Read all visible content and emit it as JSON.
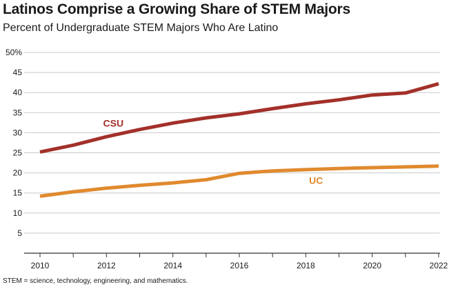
{
  "header": {
    "title": "Latinos Comprise a Growing Share of STEM Majors",
    "subtitle": "Percent of Undergraduate STEM Majors Who Are Latino"
  },
  "footnote": "STEM = science, technology, engineering, and mathematics.",
  "chart_data": {
    "type": "line",
    "title": "Latinos Comprise a Growing Share of STEM Majors",
    "subtitle": "Percent of Undergraduate STEM Majors Who Are Latino",
    "x": [
      2010,
      2011,
      2012,
      2013,
      2014,
      2015,
      2016,
      2017,
      2018,
      2019,
      2020,
      2021,
      2022
    ],
    "xlim": [
      2010,
      2022
    ],
    "x_tick_labels": [
      "2010",
      "2012",
      "2014",
      "2016",
      "2018",
      "2020",
      "2022"
    ],
    "x_tick_values": [
      2010,
      2012,
      2014,
      2016,
      2018,
      2020,
      2022
    ],
    "ylim": [
      0,
      50
    ],
    "y_tick_values": [
      5,
      10,
      15,
      20,
      25,
      30,
      35,
      40,
      45,
      50
    ],
    "y_tick_labels": [
      "5",
      "10",
      "15",
      "20",
      "25",
      "30",
      "35",
      "40",
      "45",
      "50%"
    ],
    "grid": "horizontal",
    "series": [
      {
        "name": "CSU",
        "color": "#a3302a",
        "values": [
          25.2,
          26.9,
          29.0,
          30.8,
          32.4,
          33.7,
          34.7,
          36.0,
          37.2,
          38.2,
          39.4,
          39.9,
          42.2
        ]
      },
      {
        "name": "UC",
        "color": "#e08a2e",
        "values": [
          14.2,
          15.3,
          16.2,
          16.9,
          17.5,
          18.3,
          19.9,
          20.5,
          20.8,
          21.1,
          21.3,
          21.5,
          21.7
        ]
      }
    ]
  }
}
